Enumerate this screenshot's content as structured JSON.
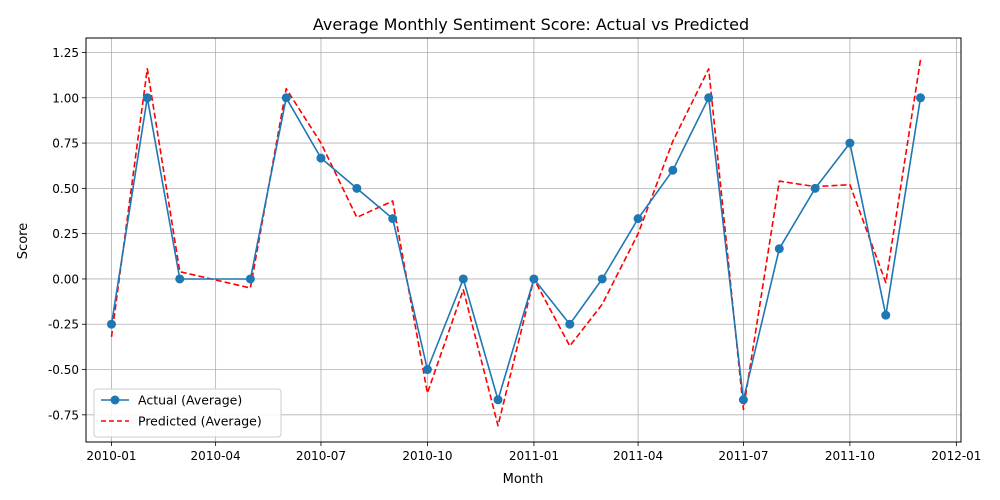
{
  "chart_data": {
    "type": "line",
    "title": "Average Monthly Sentiment Score: Actual vs Predicted",
    "xlabel": "Month",
    "ylabel": "Score",
    "x": [
      "2010-01-01",
      "2010-02-01",
      "2010-03-01",
      "2010-05-01",
      "2010-06-01",
      "2010-07-01",
      "2010-08-01",
      "2010-09-01",
      "2010-10-01",
      "2010-11-01",
      "2010-12-01",
      "2011-01-01",
      "2011-02-01",
      "2011-03-01",
      "2011-04-01",
      "2011-05-01",
      "2011-06-01",
      "2011-07-01",
      "2011-08-01",
      "2011-09-01",
      "2011-10-01",
      "2011-11-01",
      "2011-12-01"
    ],
    "series": [
      {
        "name": "Actual (Average)",
        "color": "#1f77b4",
        "style": "solid-with-markers",
        "values": [
          -0.25,
          1.0,
          0.0,
          0.0,
          1.0,
          0.667,
          0.5,
          0.333,
          -0.5,
          0.0,
          -0.667,
          0.0,
          -0.25,
          0.0,
          0.333,
          0.6,
          1.0,
          -0.667,
          0.167,
          0.5,
          0.75,
          -0.2,
          1.0
        ]
      },
      {
        "name": "Predicted (Average)",
        "color": "#ff0000",
        "style": "dashed",
        "values": [
          -0.32,
          1.16,
          0.04,
          -0.05,
          1.05,
          0.75,
          0.34,
          0.43,
          -0.63,
          -0.06,
          -0.81,
          0.0,
          -0.37,
          -0.14,
          0.25,
          0.76,
          1.16,
          -0.72,
          0.54,
          0.51,
          0.52,
          -0.02,
          1.21
        ]
      }
    ],
    "xticks": [
      "2010-01",
      "2010-04",
      "2010-07",
      "2010-10",
      "2011-01",
      "2011-04",
      "2011-07",
      "2011-10",
      "2012-01"
    ],
    "yticks": [
      "-0.75",
      "-0.50",
      "-0.25",
      "0.00",
      "0.25",
      "0.50",
      "0.75",
      "1.00",
      "1.25"
    ],
    "xlim": [
      "2009-12-10",
      "2012-01-05"
    ],
    "ylim": [
      -0.9,
      1.33
    ],
    "grid": true,
    "legend_position": "lower-left"
  }
}
